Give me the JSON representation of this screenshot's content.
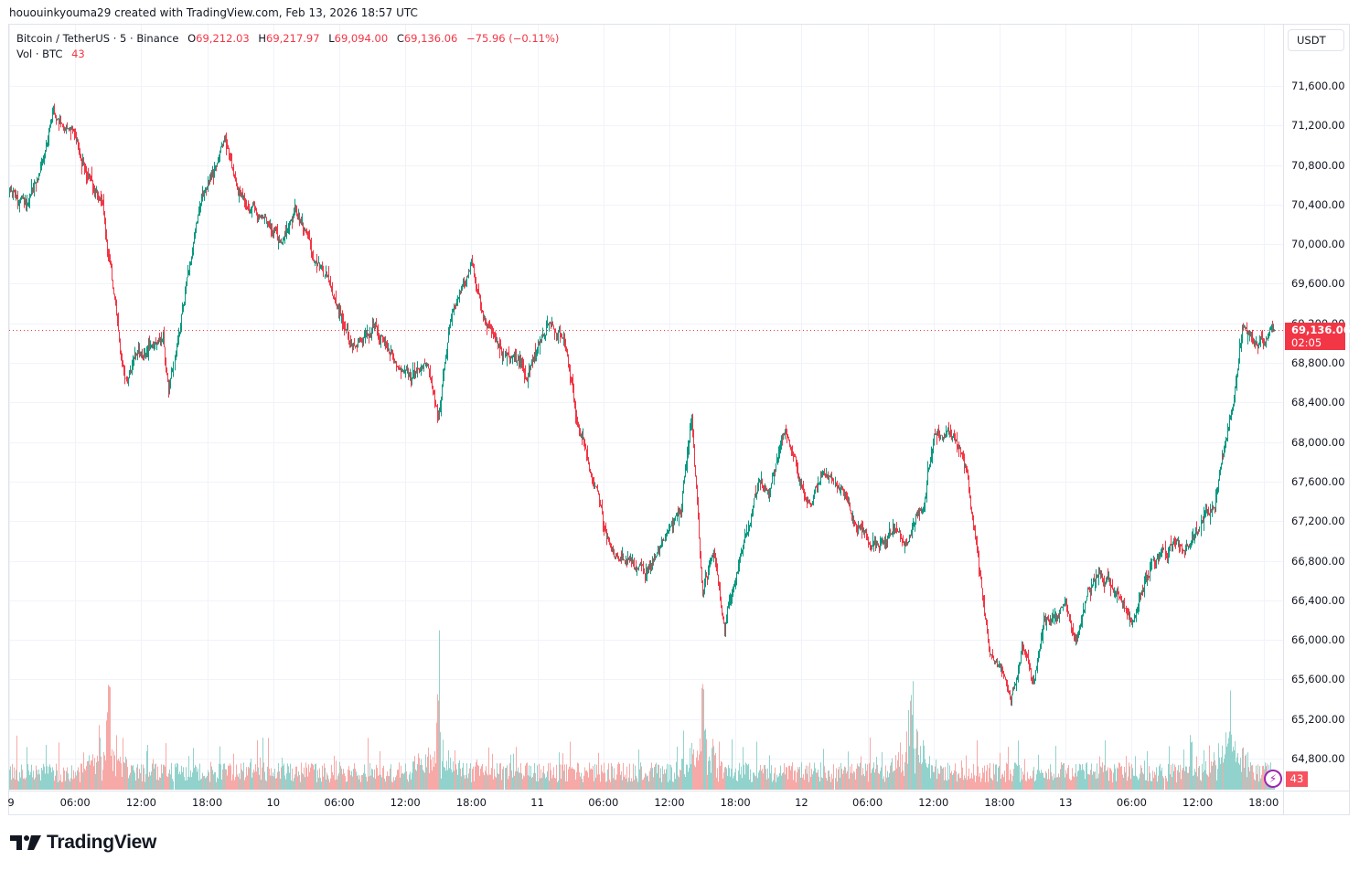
{
  "credit": "hououinkyouma29 created with TradingView.com, Feb 13, 2026 18:57 UTC",
  "legend": {
    "symbol": "Bitcoin / TetherUS · 5 · Binance",
    "o_label": "O",
    "o": "69,212.03",
    "h_label": "H",
    "h": "69,217.97",
    "l_label": "L",
    "l": "69,094.00",
    "c_label": "C",
    "c": "69,136.06",
    "change": "−75.96 (−0.11%)",
    "vol_label": "Vol · BTC",
    "vol": "43"
  },
  "unit_button": "USDT",
  "current_price": {
    "value": "69,136.06",
    "countdown": "02:05"
  },
  "volume_badge": "43",
  "brand": "TradingView",
  "colors": {
    "up": "#089981",
    "down": "#f23645",
    "vol_up": "#92d2cc",
    "vol_down": "#f7a9a7",
    "grid": "#f0f3fa"
  },
  "chart_data": {
    "type": "candlestick",
    "title": "Bitcoin / TetherUS · 5 · Binance",
    "interval": "5m",
    "ylabel": "USDT",
    "ylim": [
      64500,
      72000
    ],
    "y_ticks": [
      "71,600.00",
      "71,200.00",
      "70,800.00",
      "70,400.00",
      "70,000.00",
      "69,600.00",
      "69,200.00",
      "68,800.00",
      "68,400.00",
      "68,000.00",
      "67,600.00",
      "67,200.00",
      "66,800.00",
      "66,400.00",
      "66,000.00",
      "65,600.00",
      "65,200.00",
      "64,800.00"
    ],
    "x_ticks": [
      "9",
      "06:00",
      "12:00",
      "18:00",
      "10",
      "06:00",
      "12:00",
      "18:00",
      "11",
      "06:00",
      "12:00",
      "18:00",
      "12",
      "06:00",
      "12:00",
      "18:00",
      "13",
      "06:00",
      "12:00",
      "18:00"
    ],
    "grid": true,
    "last": {
      "open": 69212.03,
      "high": 69217.97,
      "low": 69094.0,
      "close": 69136.06,
      "change": -75.96,
      "change_pct": -0.11,
      "volume": 43
    },
    "price_path_keypoints": [
      {
        "t": "Feb 9 00:00",
        "price": 70500
      },
      {
        "t": "Feb 9 01:30",
        "price": 70300
      },
      {
        "t": "Feb 9 03:30",
        "price": 71100
      },
      {
        "t": "Feb 9 04:00",
        "price": 71400
      },
      {
        "t": "Feb 9 06:00",
        "price": 71000
      },
      {
        "t": "Feb 9 07:30",
        "price": 70600
      },
      {
        "t": "Feb 9 08:30",
        "price": 70400
      },
      {
        "t": "Feb 9 09:00",
        "price": 69900
      },
      {
        "t": "Feb 9 10:30",
        "price": 68600
      },
      {
        "t": "Feb 9 12:00",
        "price": 68900
      },
      {
        "t": "Feb 9 14:00",
        "price": 69000
      },
      {
        "t": "Feb 9 14:30",
        "price": 68500
      },
      {
        "t": "Feb 9 16:00",
        "price": 69500
      },
      {
        "t": "Feb 9 17:30",
        "price": 70500
      },
      {
        "t": "Feb 9 19:30",
        "price": 71000
      },
      {
        "t": "Feb 9 21:00",
        "price": 70500
      },
      {
        "t": "Feb 9 23:00",
        "price": 70300
      },
      {
        "t": "Feb 10 00:30",
        "price": 70000
      },
      {
        "t": "Feb 10 02:00",
        "price": 70300
      },
      {
        "t": "Feb 10 03:00",
        "price": 70000
      },
      {
        "t": "Feb 10 05:00",
        "price": 69600
      },
      {
        "t": "Feb 10 07:00",
        "price": 69000
      },
      {
        "t": "Feb 10 09:00",
        "price": 69200
      },
      {
        "t": "Feb 10 11:00",
        "price": 68900
      },
      {
        "t": "Feb 10 12:30",
        "price": 68600
      },
      {
        "t": "Feb 10 14:00",
        "price": 68900
      },
      {
        "t": "Feb 10 15:00",
        "price": 68300
      },
      {
        "t": "Feb 10 16:00",
        "price": 69200
      },
      {
        "t": "Feb 10 18:00",
        "price": 69800
      },
      {
        "t": "Feb 10 19:00",
        "price": 69300
      },
      {
        "t": "Feb 10 21:00",
        "price": 68900
      },
      {
        "t": "Feb 10 23:00",
        "price": 68700
      },
      {
        "t": "Feb 11 01:00",
        "price": 69200
      },
      {
        "t": "Feb 11 02:30",
        "price": 69000
      },
      {
        "t": "Feb 11 03:30",
        "price": 68300
      },
      {
        "t": "Feb 11 05:00",
        "price": 67600
      },
      {
        "t": "Feb 11 06:30",
        "price": 66900
      },
      {
        "t": "Feb 11 08:00",
        "price": 66800
      },
      {
        "t": "Feb 11 10:00",
        "price": 66700
      },
      {
        "t": "Feb 11 12:00",
        "price": 67100
      },
      {
        "t": "Feb 11 13:00",
        "price": 67300
      },
      {
        "t": "Feb 11 14:00",
        "price": 68300
      },
      {
        "t": "Feb 11 15:00",
        "price": 66500
      },
      {
        "t": "Feb 11 16:00",
        "price": 66900
      },
      {
        "t": "Feb 11 17:00",
        "price": 66100
      },
      {
        "t": "Feb 11 18:00",
        "price": 66700
      },
      {
        "t": "Feb 11 20:00",
        "price": 67600
      },
      {
        "t": "Feb 11 21:00",
        "price": 67500
      },
      {
        "t": "Feb 11 22:30",
        "price": 68100
      },
      {
        "t": "Feb 12 00:30",
        "price": 67300
      },
      {
        "t": "Feb 12 02:00",
        "price": 67700
      },
      {
        "t": "Feb 12 03:30",
        "price": 67600
      },
      {
        "t": "Feb 12 05:00",
        "price": 67200
      },
      {
        "t": "Feb 12 06:00",
        "price": 67000
      },
      {
        "t": "Feb 12 08:00",
        "price": 67100
      },
      {
        "t": "Feb 12 09:30",
        "price": 67000
      },
      {
        "t": "Feb 12 11:00",
        "price": 67400
      },
      {
        "t": "Feb 12 12:00",
        "price": 68100
      },
      {
        "t": "Feb 12 14:00",
        "price": 68000
      },
      {
        "t": "Feb 12 15:00",
        "price": 67700
      },
      {
        "t": "Feb 12 16:00",
        "price": 66800
      },
      {
        "t": "Feb 12 17:00",
        "price": 65900
      },
      {
        "t": "Feb 12 18:00",
        "price": 65700
      },
      {
        "t": "Feb 12 19:00",
        "price": 65400
      },
      {
        "t": "Feb 12 20:00",
        "price": 65900
      },
      {
        "t": "Feb 12 21:00",
        "price": 65500
      },
      {
        "t": "Feb 12 22:00",
        "price": 66100
      },
      {
        "t": "Feb 13 00:00",
        "price": 66400
      },
      {
        "t": "Feb 13 01:00",
        "price": 66000
      },
      {
        "t": "Feb 13 02:00",
        "price": 66500
      },
      {
        "t": "Feb 13 03:00",
        "price": 66700
      },
      {
        "t": "Feb 13 05:00",
        "price": 66400
      },
      {
        "t": "Feb 13 06:00",
        "price": 66200
      },
      {
        "t": "Feb 13 07:00",
        "price": 66500
      },
      {
        "t": "Feb 13 08:00",
        "price": 66800
      },
      {
        "t": "Feb 13 10:00",
        "price": 67000
      },
      {
        "t": "Feb 13 12:00",
        "price": 67100
      },
      {
        "t": "Feb 13 13:30",
        "price": 67400
      },
      {
        "t": "Feb 13 15:00",
        "price": 68300
      },
      {
        "t": "Feb 13 16:00",
        "price": 69200
      },
      {
        "t": "Feb 13 17:00",
        "price": 69000
      },
      {
        "t": "Feb 13 18:55",
        "price": 69136
      }
    ],
    "volume_spikes_btc_approx": [
      {
        "t": "Feb 9 09:00",
        "value": "peak"
      },
      {
        "t": "Feb 10 15:00",
        "value": "peak"
      },
      {
        "t": "Feb 11 15:00",
        "value": "peak"
      },
      {
        "t": "Feb 12 10:00",
        "value": "peak"
      },
      {
        "t": "Feb 13 15:00",
        "value": "peak"
      }
    ]
  }
}
